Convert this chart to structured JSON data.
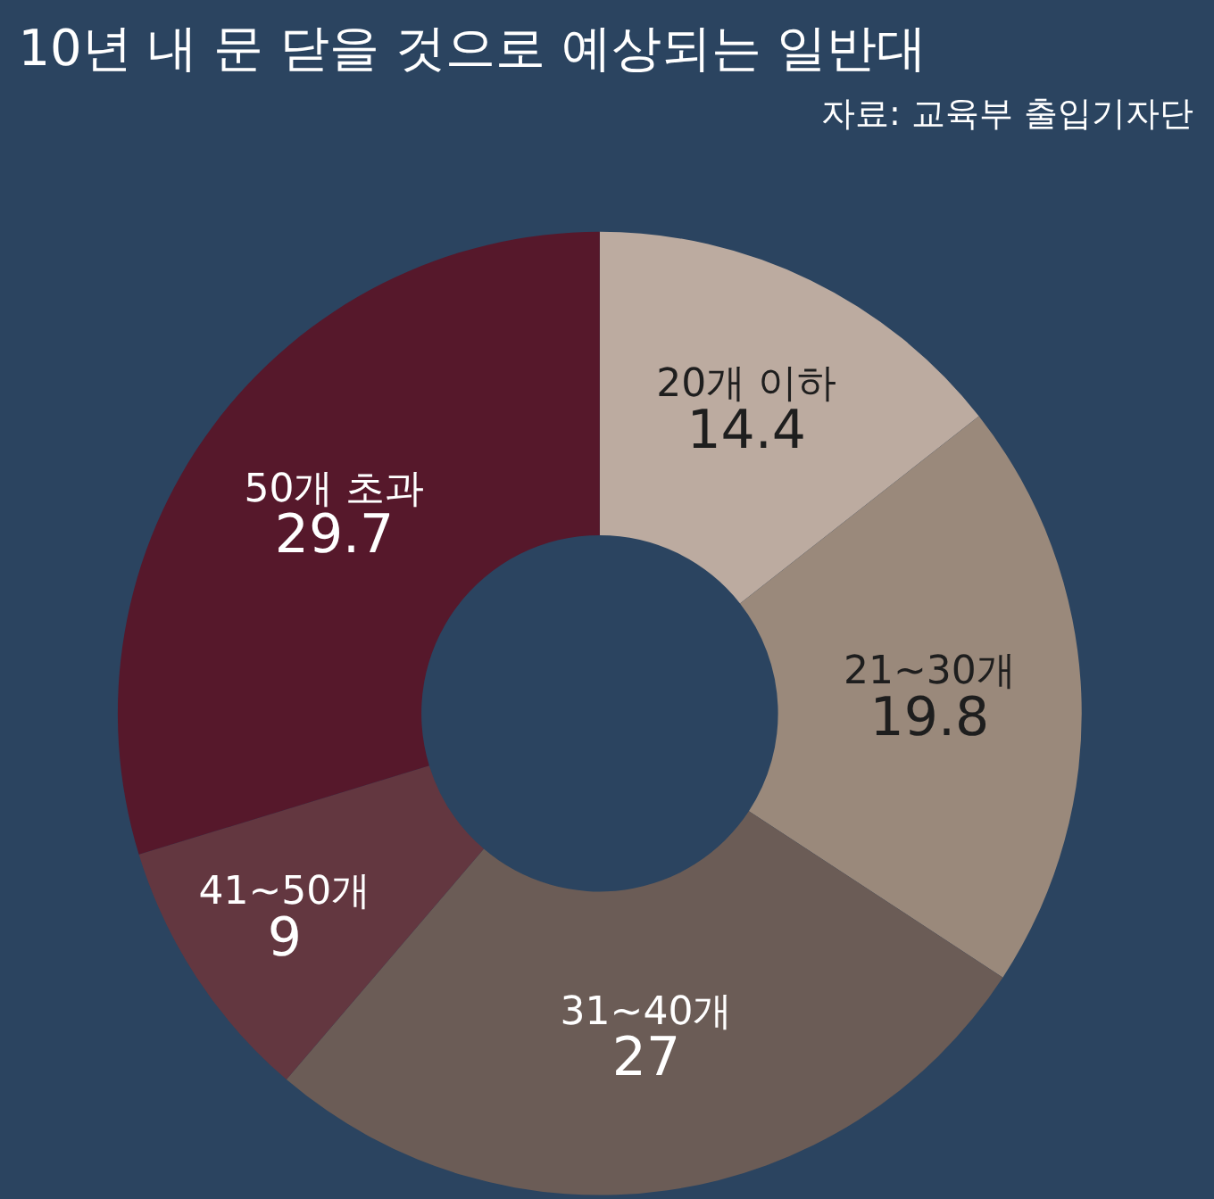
{
  "chart_data": {
    "type": "donut",
    "title": "10년 내 문 닫을 것으로 예상되는 일반대",
    "annotations": [
      "자료: 교육부 출입기자단"
    ],
    "categories": [
      "20개 이하",
      "21~30개",
      "31~40개",
      "41~50개",
      "50개 초과"
    ],
    "values": [
      14.4,
      19.8,
      27,
      9,
      29.7
    ],
    "colors": [
      "#bcaba0",
      "#9a897b",
      "#6b5c56",
      "#633740",
      "#56182b"
    ],
    "data_labels": true,
    "legend": false
  }
}
